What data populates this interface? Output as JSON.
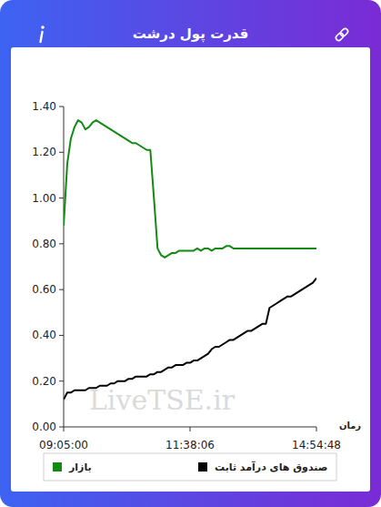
{
  "chart_data": {
    "type": "line",
    "title": "قدرت پول درشت",
    "x_label": "زمان",
    "annotations": [
      "LiveTSE.ir"
    ],
    "categories": [
      "09:05:00",
      null,
      null,
      null,
      null,
      null,
      null,
      null,
      null,
      null,
      null,
      null,
      null,
      null,
      null,
      null,
      null,
      null,
      null,
      null,
      null,
      null,
      null,
      null,
      null,
      null,
      null,
      null,
      null,
      null,
      null,
      null,
      null,
      null,
      null,
      "11:38:06",
      null,
      null,
      null,
      null,
      null,
      null,
      null,
      null,
      null,
      null,
      null,
      null,
      null,
      null,
      null,
      null,
      null,
      null,
      null,
      null,
      null,
      null,
      null,
      null,
      null,
      null,
      null,
      null,
      null,
      null,
      null,
      null,
      null,
      null,
      "14:54:48"
    ],
    "series": [
      {
        "name": "بازار",
        "color": "#138a13",
        "values": [
          0.88,
          1.15,
          1.26,
          1.31,
          1.34,
          1.33,
          1.3,
          1.31,
          1.33,
          1.34,
          1.33,
          1.32,
          1.31,
          1.3,
          1.29,
          1.28,
          1.27,
          1.26,
          1.25,
          1.24,
          1.24,
          1.23,
          1.22,
          1.21,
          1.21,
          1.0,
          0.78,
          0.75,
          0.74,
          0.75,
          0.76,
          0.76,
          0.77,
          0.77,
          0.77,
          0.77,
          0.77,
          0.78,
          0.77,
          0.78,
          0.78,
          0.77,
          0.78,
          0.78,
          0.78,
          0.79,
          0.79,
          0.78,
          0.78,
          0.78,
          0.78,
          0.78,
          0.78,
          0.78,
          0.78,
          0.78,
          0.78,
          0.78,
          0.78,
          0.78,
          0.78,
          0.78,
          0.78,
          0.78,
          0.78,
          0.78,
          0.78,
          0.78,
          0.78,
          0.78,
          0.78
        ]
      },
      {
        "name": "صندوق های درآمد ثابت",
        "color": "#000000",
        "values": [
          0.12,
          0.15,
          0.15,
          0.16,
          0.16,
          0.16,
          0.16,
          0.17,
          0.17,
          0.17,
          0.18,
          0.18,
          0.18,
          0.19,
          0.19,
          0.2,
          0.2,
          0.2,
          0.21,
          0.21,
          0.22,
          0.22,
          0.22,
          0.22,
          0.23,
          0.23,
          0.24,
          0.24,
          0.25,
          0.26,
          0.26,
          0.27,
          0.27,
          0.27,
          0.28,
          0.28,
          0.29,
          0.29,
          0.3,
          0.31,
          0.32,
          0.34,
          0.35,
          0.35,
          0.36,
          0.37,
          0.38,
          0.38,
          0.39,
          0.4,
          0.41,
          0.42,
          0.42,
          0.43,
          0.44,
          0.45,
          0.45,
          0.52,
          0.53,
          0.54,
          0.55,
          0.56,
          0.57,
          0.57,
          0.58,
          0.59,
          0.6,
          0.61,
          0.62,
          0.63,
          0.65
        ]
      }
    ],
    "ylim": [
      0,
      1.4
    ],
    "yticks": [
      {
        "value": 0,
        "label": "0.00"
      },
      {
        "value": 0.2,
        "label": "0.20"
      },
      {
        "value": 0.4,
        "label": "0.40"
      },
      {
        "value": 0.6,
        "label": "0.60"
      },
      {
        "value": 0.8,
        "label": "0.80"
      },
      {
        "value": 1,
        "label": "1.00"
      },
      {
        "value": 1.2,
        "label": "1.20"
      },
      {
        "value": 1.4,
        "label": "1.40"
      }
    ],
    "grid": false,
    "legend": "bottom"
  }
}
